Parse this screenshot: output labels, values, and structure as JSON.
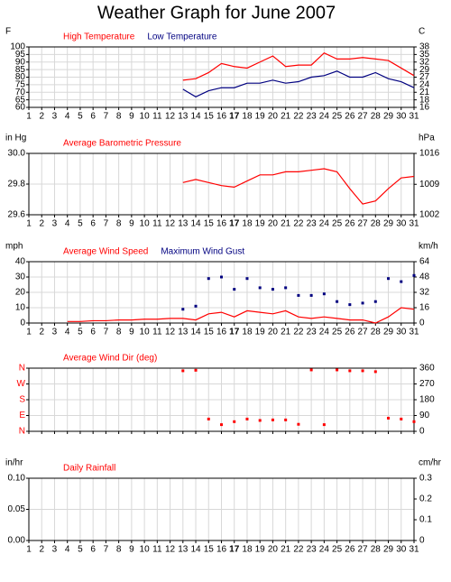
{
  "title": "Weather Graph for June 2007",
  "highlight_x": 17,
  "chart_data": [
    {
      "type": "line",
      "y_label": "F",
      "y2_label": "C",
      "xlim": [
        1,
        31
      ],
      "xticks": [
        1,
        2,
        3,
        4,
        5,
        6,
        7,
        8,
        9,
        10,
        11,
        12,
        13,
        14,
        15,
        16,
        17,
        18,
        19,
        20,
        21,
        22,
        23,
        24,
        25,
        26,
        27,
        28,
        29,
        30,
        31
      ],
      "ylim": [
        60,
        100
      ],
      "yticks": [
        60,
        65,
        70,
        75,
        80,
        85,
        90,
        95,
        100
      ],
      "y2lim": [
        15.56,
        37.78
      ],
      "y2ticks": [
        {
          "value": 15.56,
          "label": "16"
        },
        {
          "value": 18.33,
          "label": "18"
        },
        {
          "value": 21.11,
          "label": "21"
        },
        {
          "value": 23.89,
          "label": "24"
        },
        {
          "value": 26.67,
          "label": "27"
        },
        {
          "value": 29.44,
          "label": "29"
        },
        {
          "value": 32.22,
          "label": "32"
        },
        {
          "value": 35,
          "label": "35"
        },
        {
          "value": 37.78,
          "label": "38"
        }
      ],
      "grid": true,
      "series": [
        {
          "name": "High Temperature",
          "color": "#ff0000",
          "style": "line",
          "x": [
            13,
            14,
            15,
            16,
            17,
            18,
            19,
            20,
            21,
            22,
            23,
            24,
            25,
            26,
            27,
            28,
            29,
            30,
            31
          ],
          "values": [
            78,
            79,
            83,
            89,
            87,
            86,
            90,
            94,
            87,
            88,
            88,
            96,
            92,
            92,
            93,
            92,
            91,
            86,
            81
          ]
        },
        {
          "name": "Low Temperature",
          "color": "#000080",
          "style": "line",
          "x": [
            13,
            14,
            15,
            16,
            17,
            18,
            19,
            20,
            21,
            22,
            23,
            24,
            25,
            26,
            27,
            28,
            29,
            30,
            31
          ],
          "values": [
            72,
            67,
            71,
            73,
            73,
            76,
            76,
            78,
            76,
            77,
            80,
            81,
            84,
            80,
            80,
            83,
            79,
            77,
            73
          ]
        }
      ]
    },
    {
      "type": "line",
      "y_label": "in Hg",
      "y2_label": "hPa",
      "xlim": [
        1,
        31
      ],
      "xticks": [
        1,
        2,
        3,
        4,
        5,
        6,
        7,
        8,
        9,
        10,
        11,
        12,
        13,
        14,
        15,
        16,
        17,
        18,
        19,
        20,
        21,
        22,
        23,
        24,
        25,
        26,
        27,
        28,
        29,
        30,
        31
      ],
      "ylim": [
        29.6,
        30.0
      ],
      "yticks": [
        29.6,
        29.8,
        {
          "value": 30,
          "label": "30.0"
        }
      ],
      "y2lim": [
        1002.4,
        1015.9
      ],
      "y2ticks": [
        {
          "value": 1002.4,
          "label": "1002"
        },
        {
          "value": 1009.1,
          "label": "1009"
        },
        {
          "value": 1015.9,
          "label": "1016"
        }
      ],
      "grid": true,
      "series": [
        {
          "name": "Average Barometric Pressure",
          "color": "#ff0000",
          "style": "line",
          "x": [
            13,
            14,
            15,
            16,
            17,
            18,
            19,
            20,
            21,
            22,
            23,
            24,
            25,
            26,
            27,
            28,
            29,
            30,
            31
          ],
          "values": [
            29.81,
            29.83,
            29.81,
            29.79,
            29.78,
            29.82,
            29.86,
            29.86,
            29.88,
            29.88,
            29.89,
            29.9,
            29.88,
            29.77,
            29.67,
            29.69,
            29.77,
            29.84,
            29.85
          ]
        }
      ]
    },
    {
      "type": "line",
      "y_label": "mph",
      "y2_label": "km/h",
      "xlim": [
        1,
        31
      ],
      "xticks": [
        1,
        2,
        3,
        4,
        5,
        6,
        7,
        8,
        9,
        10,
        11,
        12,
        13,
        14,
        15,
        16,
        17,
        18,
        19,
        20,
        21,
        22,
        23,
        24,
        25,
        26,
        27,
        28,
        29,
        30,
        31
      ],
      "ylim": [
        0,
        40
      ],
      "yticks": [
        0,
        10,
        20,
        30,
        40
      ],
      "y2lim": [
        0,
        64.37
      ],
      "y2ticks": [
        0,
        {
          "value": 16.09,
          "label": "16"
        },
        {
          "value": 32.19,
          "label": "32"
        },
        {
          "value": 48.28,
          "label": "48"
        },
        {
          "value": 64.37,
          "label": "64"
        }
      ],
      "grid": true,
      "series": [
        {
          "name": "Average Wind Speed",
          "color": "#ff0000",
          "style": "line",
          "x": [
            4,
            5,
            6,
            7,
            8,
            9,
            10,
            11,
            12,
            13,
            14,
            15,
            16,
            17,
            18,
            19,
            20,
            21,
            22,
            23,
            24,
            25,
            26,
            27,
            28,
            29,
            30,
            31
          ],
          "values": [
            1,
            1,
            1.5,
            1.5,
            2,
            2,
            2.5,
            2.5,
            3,
            3,
            2,
            6,
            7,
            4,
            8,
            7,
            6,
            8,
            4,
            3,
            4,
            3,
            2,
            2,
            0,
            4,
            10,
            9
          ]
        },
        {
          "name": "Maximum Wind Gust",
          "color": "#000080",
          "style": "dots",
          "x": [
            13,
            14,
            15,
            16,
            17,
            18,
            19,
            20,
            21,
            22,
            23,
            24,
            25,
            26,
            27,
            28,
            29,
            30,
            31
          ],
          "values": [
            9,
            11,
            29,
            30,
            22,
            29,
            23,
            22,
            23,
            18,
            18,
            19,
            14,
            12,
            13,
            14,
            29,
            27,
            31
          ]
        }
      ]
    },
    {
      "type": "scatter",
      "y2_label": null,
      "show_xtick_labels": false,
      "xlim": [
        1,
        31
      ],
      "xticks": [
        1,
        2,
        3,
        4,
        5,
        6,
        7,
        8,
        9,
        10,
        11,
        12,
        13,
        14,
        15,
        16,
        17,
        18,
        19,
        20,
        21,
        22,
        23,
        24,
        25,
        26,
        27,
        28,
        29,
        30,
        31
      ],
      "ylim": [
        0,
        360
      ],
      "ytick_color": "#ff0000",
      "yticks": [
        {
          "value": 0,
          "label": "N"
        },
        {
          "value": 90,
          "label": "E"
        },
        {
          "value": 180,
          "label": "S"
        },
        {
          "value": 270,
          "label": "W"
        },
        {
          "value": 360,
          "label": "N"
        }
      ],
      "y2lim": [
        0,
        360
      ],
      "y2ticks": [
        0,
        90,
        180,
        270,
        360
      ],
      "grid": true,
      "series": [
        {
          "name": "Average Wind Dir (deg)",
          "color": "#ff0000",
          "style": "dots",
          "x": [
            13,
            14,
            15,
            16,
            17,
            18,
            19,
            20,
            21,
            22,
            23,
            24,
            25,
            26,
            27,
            28,
            29,
            30,
            31
          ],
          "values": [
            345,
            348,
            70,
            38,
            55,
            70,
            62,
            65,
            65,
            40,
            350,
            38,
            350,
            345,
            345,
            340,
            75,
            70,
            55
          ]
        }
      ]
    },
    {
      "type": "line",
      "y_label": "in/hr",
      "y2_label": "cm/hr",
      "xlim": [
        1,
        31
      ],
      "xticks": [
        1,
        2,
        3,
        4,
        5,
        6,
        7,
        8,
        9,
        10,
        11,
        12,
        13,
        14,
        15,
        16,
        17,
        18,
        19,
        20,
        21,
        22,
        23,
        24,
        25,
        26,
        27,
        28,
        29,
        30,
        31
      ],
      "ylim": [
        0,
        0.1
      ],
      "yticks": [
        {
          "value": 0,
          "label": "0.00"
        },
        0.05,
        {
          "value": 0.1,
          "label": "0.10"
        }
      ],
      "y2lim": [
        0,
        0.3
      ],
      "y2ticks": [
        0,
        0.1,
        0.2,
        0.3
      ],
      "grid": true,
      "series": [
        {
          "name": "Daily Rainfall",
          "color": "#ff0000",
          "style": "line",
          "x": [],
          "values": []
        }
      ]
    }
  ]
}
